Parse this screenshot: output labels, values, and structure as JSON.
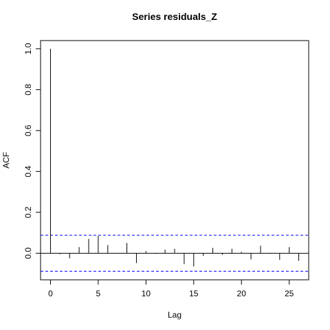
{
  "chart_data": {
    "type": "bar",
    "title": "Series  residuals_Z",
    "xlabel": "Lag",
    "ylabel": "ACF",
    "xlim": [
      -1.04,
      27.04
    ],
    "ylim": [
      -0.13,
      1.04
    ],
    "x_ticks": [
      0,
      5,
      10,
      15,
      20,
      25
    ],
    "y_ticks": [
      0.0,
      0.2,
      0.4,
      0.6,
      0.8,
      1.0
    ],
    "x_tick_labels": [
      "0",
      "5",
      "10",
      "15",
      "20",
      "25"
    ],
    "y_tick_labels": [
      "0.0",
      "0.2",
      "0.4",
      "0.6",
      "0.8",
      "1.0"
    ],
    "lags": [
      0,
      1,
      2,
      3,
      4,
      5,
      6,
      7,
      8,
      9,
      10,
      11,
      12,
      13,
      14,
      15,
      16,
      17,
      18,
      19,
      20,
      21,
      22,
      23,
      24,
      25,
      26
    ],
    "acf": [
      1.0,
      -0.005,
      -0.025,
      0.03,
      0.07,
      0.085,
      0.04,
      0.002,
      0.05,
      -0.048,
      0.01,
      -0.003,
      0.018,
      0.022,
      -0.053,
      -0.065,
      -0.013,
      0.026,
      -0.008,
      0.022,
      0.007,
      -0.03,
      0.037,
      -0.003,
      -0.032,
      0.03,
      -0.037
    ],
    "confidence_bound": 0.088,
    "confidence_color": "#0000ff",
    "bar_color": "#000000",
    "grid": false,
    "legend": "none"
  }
}
